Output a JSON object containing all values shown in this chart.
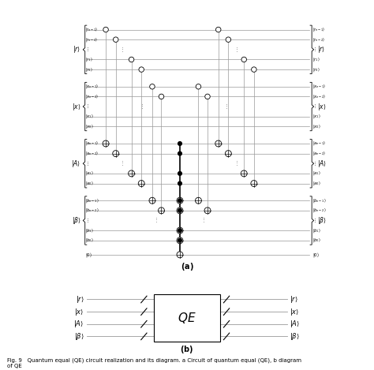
{
  "fig_width": 4.74,
  "fig_height": 4.69,
  "line_color": "#999999",
  "wire_color": "#999999",
  "r_sublabels": [
    "$|r_{n-1}\\rangle$",
    "$|r_{n-2}\\rangle$",
    "$\\vdots$",
    "$|r_1\\rangle$",
    "$|r_0\\rangle$"
  ],
  "x_sublabels": [
    "$|x_{n-1}\\rangle$",
    "$|x_{n-2}\\rangle$",
    "$\\vdots$",
    "$|x_1\\rangle$",
    "$|x_0\\rangle$"
  ],
  "A_sublabels": [
    "$|a_{n-1}\\rangle$",
    "$|a_{n-2}\\rangle$",
    "$\\vdots$",
    "$|a_1\\rangle$",
    "$|a_0\\rangle$"
  ],
  "b_sublabels": [
    "$|b_{n-1}\\rangle$",
    "$|b_{n-2}\\rangle$",
    "$\\vdots$",
    "$|b_1\\rangle$",
    "$|b_0\\rangle$"
  ],
  "group_labels_left": [
    "$|r\\rangle$",
    "$|x\\rangle$",
    "$|A\\rangle$",
    "$|\\beta\\rangle$"
  ],
  "group_labels_right": [
    "$|r\\rangle$",
    "$|x\\rangle$",
    "$|A\\rangle$",
    "$|\\beta\\rangle$"
  ],
  "zero_label": "$|0\\rangle$",
  "caption": "Fig. 9   Quantum equal (QE) circuit realization and its diagram. a Circuit of quantum equal (QE), b diagram\nof QE",
  "diag_labels_in": [
    "$|r\\rangle$",
    "$|x\\rangle$",
    "$|A\\rangle$",
    "$|\\beta\\rangle$"
  ],
  "diag_labels_out": [
    "$|r\\rangle$",
    "$|x\\rangle$",
    "$|A\\rangle$",
    "$|\\beta\\rangle$"
  ],
  "diag_gate_text": "$\\mathit{QE}$",
  "title_a": "(a)",
  "title_b": "(b)"
}
